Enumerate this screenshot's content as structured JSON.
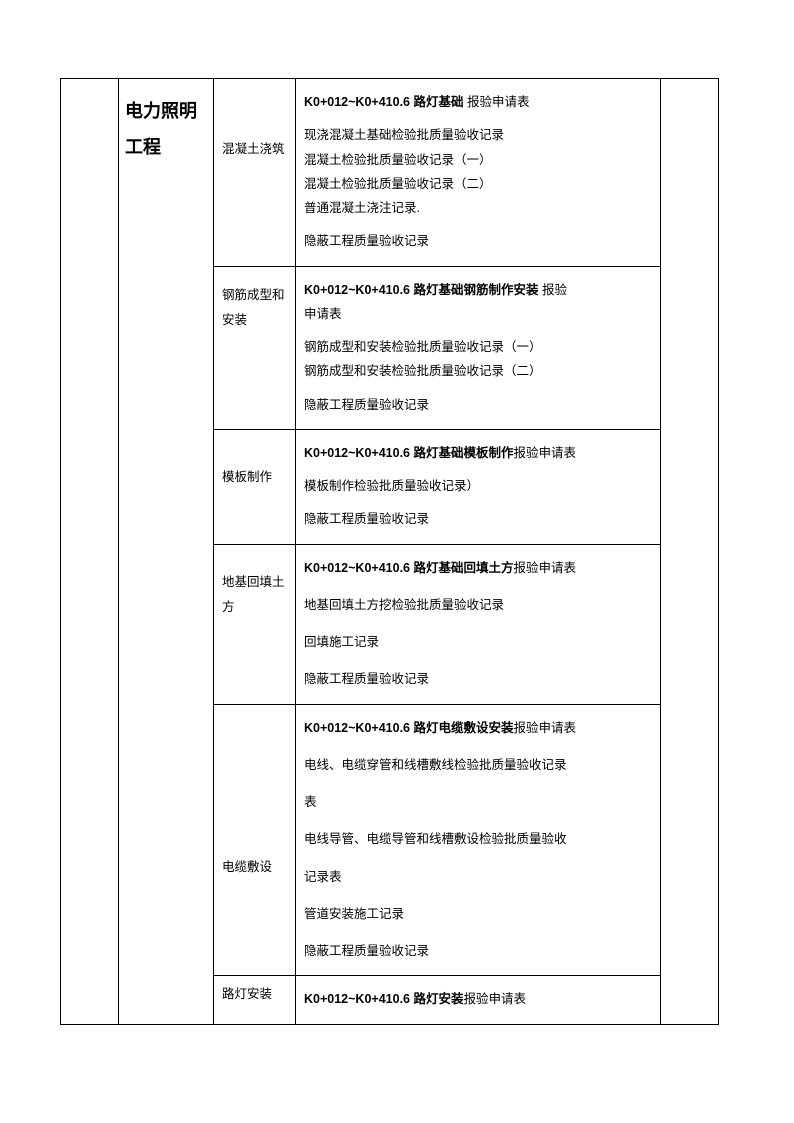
{
  "category_title": "电力照明工程",
  "rows": [
    {
      "label": "混凝土浇筑",
      "label_class": "middle",
      "lines": [
        {
          "segments": [
            {
              "text": "K0+012~K0+410.6 路灯基础",
              "bold": true
            },
            {
              "text": "  报验申请表",
              "bold": false
            }
          ],
          "cls": "gap-below"
        },
        {
          "segments": [
            {
              "text": "现浇混凝土基础检验批质量验收记录",
              "bold": false
            }
          ],
          "cls": "gap-above"
        },
        {
          "segments": [
            {
              "text": "混凝土检验批质量验收记录（一）",
              "bold": false
            }
          ]
        },
        {
          "segments": [
            {
              "text": "混凝土检验批质量验收记录（二）",
              "bold": false
            }
          ]
        },
        {
          "segments": [
            {
              "text": "普通混凝土浇注记录.",
              "bold": false
            }
          ]
        },
        {
          "segments": [
            {
              "text": "隐蔽工程质量验收记录",
              "bold": false
            }
          ],
          "cls": "gap-above"
        }
      ]
    },
    {
      "label": "钢筋成型和安装",
      "label_class": "upper",
      "lines": [
        {
          "segments": [
            {
              "text": "K0+012~K0+410.6  路灯基础钢筋制作安装",
              "bold": true
            },
            {
              "text": "  报验",
              "bold": false
            }
          ]
        },
        {
          "segments": [
            {
              "text": "申请表",
              "bold": false
            }
          ],
          "cls": "gap-below"
        },
        {
          "segments": [
            {
              "text": "钢筋成型和安装检验批质量验收记录（一）",
              "bold": false
            }
          ]
        },
        {
          "segments": [
            {
              "text": "钢筋成型和安装检验批质量验收记录（二）",
              "bold": false
            }
          ]
        },
        {
          "segments": [
            {
              "text": "隐蔽工程质量验收记录",
              "bold": false
            }
          ],
          "cls": "gap-above"
        }
      ]
    },
    {
      "label": "模板制作",
      "label_class": "formwork",
      "lines": [
        {
          "segments": [
            {
              "text": "K0+012~K0+410.6 路灯基础模板制作",
              "bold": true
            },
            {
              "text": "报验申请表",
              "bold": false
            }
          ],
          "cls": "gap-below"
        },
        {
          "segments": [
            {
              "text": "模板制作检验批质量验收记录）",
              "bold": false
            }
          ]
        },
        {
          "segments": [
            {
              "text": "隐蔽工程质量验收记录",
              "bold": false
            }
          ],
          "cls": "gap-above"
        }
      ]
    },
    {
      "label": "地基回填土方",
      "label_class": "earth",
      "lines": [
        {
          "segments": [
            {
              "text": "K0+012~K0+410.6 路灯基础回填土方",
              "bold": true
            },
            {
              "text": "报验申请表",
              "bold": false
            }
          ],
          "cls": "gap-below"
        },
        {
          "segments": [
            {
              "text": "地基回填土方挖检验批质量验收记录",
              "bold": false
            }
          ],
          "cls": "big-gap"
        },
        {
          "segments": [
            {
              "text": "回填施工记录",
              "bold": false
            }
          ],
          "cls": "big-gap"
        },
        {
          "segments": [
            {
              "text": "隐蔽工程质量验收记录",
              "bold": false
            }
          ],
          "cls": "gap-above"
        }
      ]
    },
    {
      "label": "电缆敷设",
      "label_class": "cable",
      "lines": [
        {
          "segments": [
            {
              "text": "K0+012~K0+410.6 路灯电缆敷设安装",
              "bold": true
            },
            {
              "text": "报验申请表",
              "bold": false
            }
          ],
          "cls": "gap-below"
        },
        {
          "segments": [
            {
              "text": "电线、电缆穿管和线槽敷线检验批质量验收记录",
              "bold": false
            }
          ],
          "cls": "big-gap"
        },
        {
          "segments": [
            {
              "text": "表",
              "bold": false
            }
          ],
          "cls": "big-gap"
        },
        {
          "segments": [
            {
              "text": "电线导管、电缆导管和线槽敷设检验批质量验收",
              "bold": false
            }
          ],
          "cls": "big-gap"
        },
        {
          "segments": [
            {
              "text": "记录表",
              "bold": false
            }
          ],
          "cls": "big-gap"
        },
        {
          "segments": [
            {
              "text": "管道安装施工记录",
              "bold": false
            }
          ],
          "cls": "big-gap"
        },
        {
          "segments": [
            {
              "text": "隐蔽工程质量验收记录",
              "bold": false
            }
          ],
          "cls": "gap-above"
        }
      ]
    },
    {
      "label": "路灯安装",
      "label_class": "light",
      "lines": [
        {
          "segments": [
            {
              "text": "K0+012~K0+410.6 路灯安装",
              "bold": true
            },
            {
              "text": "报验申请表",
              "bold": false
            }
          ]
        }
      ]
    }
  ]
}
